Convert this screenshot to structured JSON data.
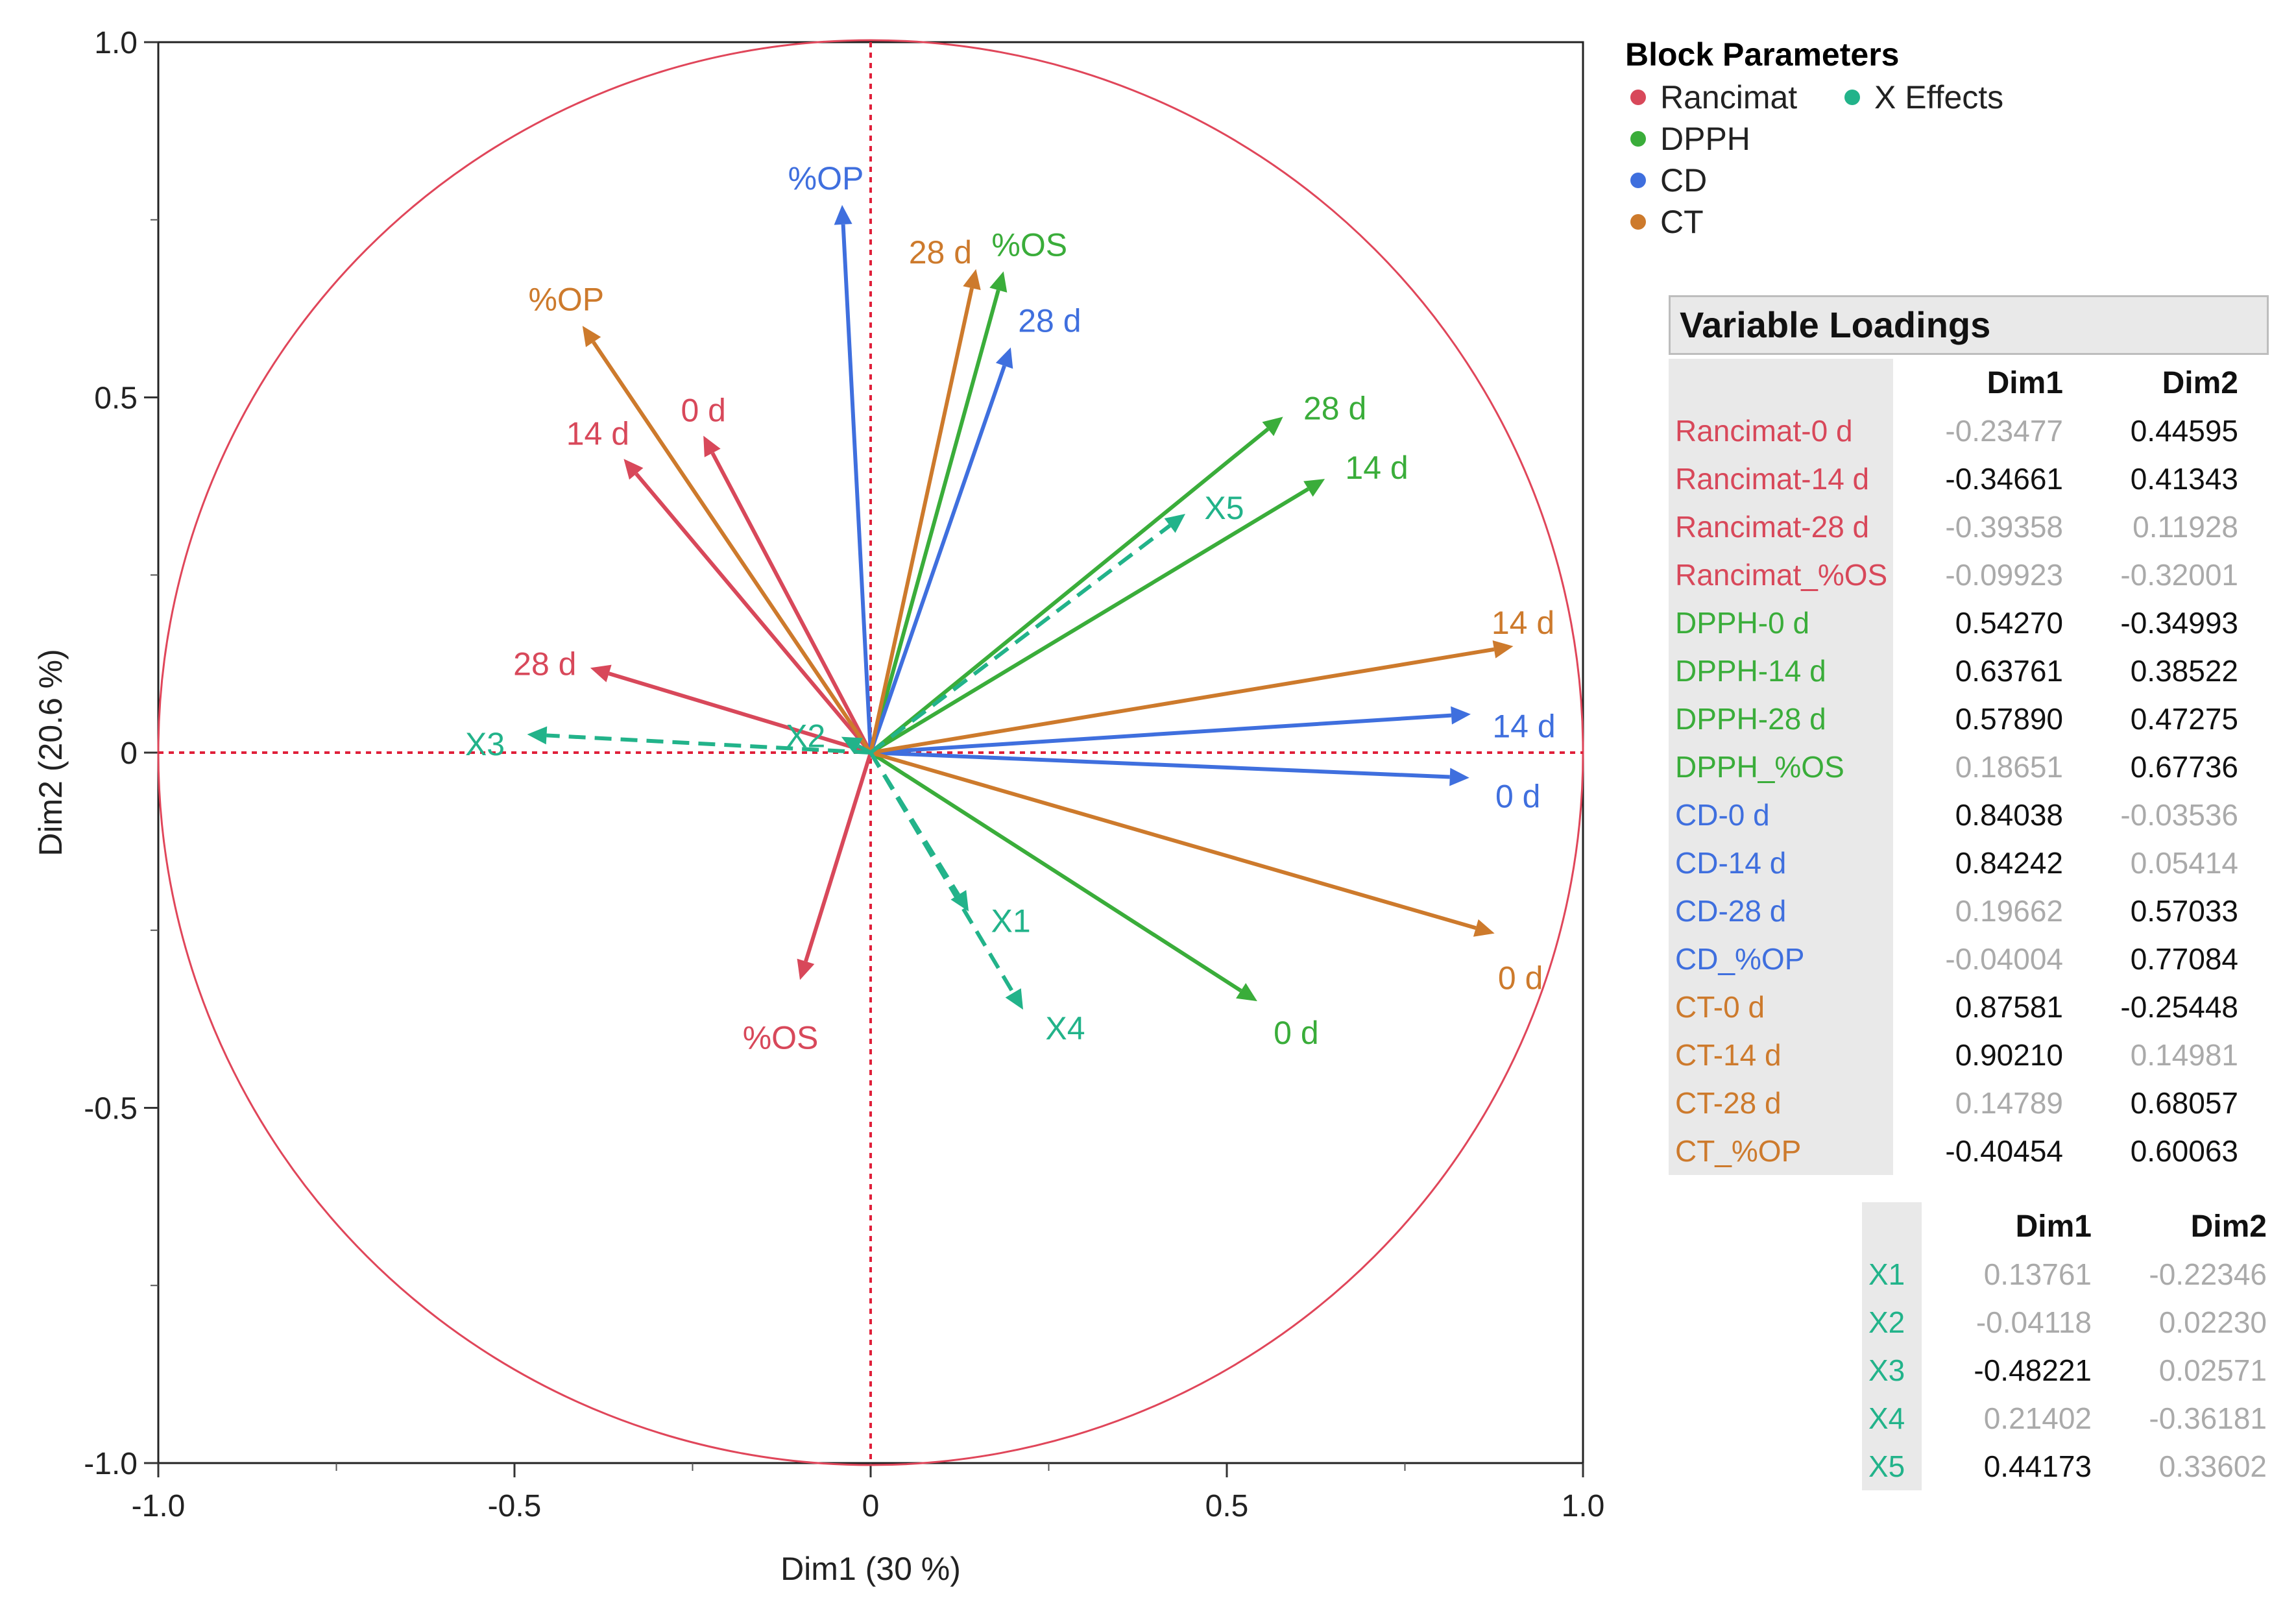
{
  "chart_data": {
    "type": "scatter",
    "subtype": "loading-plot-vectors",
    "xlabel": "Dim1  (30 %)",
    "ylabel": "Dim2  (20.6 %)",
    "xlim": [
      -1.0,
      1.0
    ],
    "ylim": [
      -1.0,
      1.0
    ],
    "xticks": [
      "-1.0",
      "-0.5",
      "0",
      "0.5",
      "1.0"
    ],
    "yticks": [
      "1.0",
      "0.5",
      "0",
      "-0.5",
      "-1.0"
    ],
    "unit_circle": true,
    "colors": {
      "Rancimat": "#d8485a",
      "DPPH": "#3aad3a",
      "CD": "#3f6fde",
      "CT": "#cd7a2c",
      "X Effects": "#22b38a"
    },
    "legend": {
      "title": "Block Parameters",
      "items": [
        "Rancimat",
        "X Effects",
        "DPPH",
        "CD",
        "CT"
      ]
    },
    "series": [
      {
        "name": "Rancimat",
        "points": [
          {
            "label": "0 d",
            "x": -0.23477,
            "y": 0.44595
          },
          {
            "label": "14 d",
            "x": -0.34661,
            "y": 0.41343
          },
          {
            "label": "28 d",
            "x": -0.39358,
            "y": 0.11928
          },
          {
            "label": "%OS",
            "x": -0.09923,
            "y": -0.32001
          }
        ]
      },
      {
        "name": "DPPH",
        "points": [
          {
            "label": "0 d",
            "x": 0.5427,
            "y": -0.34993
          },
          {
            "label": "14 d",
            "x": 0.63761,
            "y": 0.38522
          },
          {
            "label": "28 d",
            "x": 0.5789,
            "y": 0.47275
          },
          {
            "label": "%OS",
            "x": 0.18651,
            "y": 0.67736
          }
        ]
      },
      {
        "name": "CD",
        "points": [
          {
            "label": "0 d",
            "x": 0.84038,
            "y": -0.03536
          },
          {
            "label": "14 d",
            "x": 0.84242,
            "y": 0.05414
          },
          {
            "label": "28 d",
            "x": 0.19662,
            "y": 0.57033
          },
          {
            "label": "%OP",
            "x": -0.04004,
            "y": 0.77084
          }
        ]
      },
      {
        "name": "CT",
        "points": [
          {
            "label": "0 d",
            "x": 0.87581,
            "y": -0.25448
          },
          {
            "label": "14 d",
            "x": 0.9021,
            "y": 0.14981
          },
          {
            "label": "28 d",
            "x": 0.14789,
            "y": 0.68057
          },
          {
            "label": "%OP",
            "x": -0.40454,
            "y": 0.60063
          }
        ]
      },
      {
        "name": "X Effects",
        "dashed": true,
        "points": [
          {
            "label": "X1",
            "x": 0.13761,
            "y": -0.22346
          },
          {
            "label": "X2",
            "x": -0.04118,
            "y": 0.0223
          },
          {
            "label": "X3",
            "x": -0.48221,
            "y": 0.02571
          },
          {
            "label": "X4",
            "x": 0.21402,
            "y": -0.36181
          },
          {
            "label": "X5",
            "x": 0.44173,
            "y": 0.33602
          }
        ]
      }
    ]
  },
  "loadings_table": {
    "title": "Variable Loadings",
    "headers": [
      "Dim1",
      "Dim2"
    ],
    "rows": [
      {
        "name": "Rancimat-0 d",
        "group": "Rancimat",
        "dim1": "-0.23477",
        "dim2": "0.44595",
        "b1": false,
        "b2": true
      },
      {
        "name": "Rancimat-14 d",
        "group": "Rancimat",
        "dim1": "-0.34661",
        "dim2": "0.41343",
        "b1": true,
        "b2": true
      },
      {
        "name": "Rancimat-28 d",
        "group": "Rancimat",
        "dim1": "-0.39358",
        "dim2": "0.11928",
        "b1": false,
        "b2": false
      },
      {
        "name": "Rancimat_%OS",
        "group": "Rancimat",
        "dim1": "-0.09923",
        "dim2": "-0.32001",
        "b1": false,
        "b2": false
      },
      {
        "name": "DPPH-0 d",
        "group": "DPPH",
        "dim1": "0.54270",
        "dim2": "-0.34993",
        "b1": true,
        "b2": true
      },
      {
        "name": "DPPH-14 d",
        "group": "DPPH",
        "dim1": "0.63761",
        "dim2": "0.38522",
        "b1": true,
        "b2": true
      },
      {
        "name": "DPPH-28 d",
        "group": "DPPH",
        "dim1": "0.57890",
        "dim2": "0.47275",
        "b1": true,
        "b2": true
      },
      {
        "name": "DPPH_%OS",
        "group": "DPPH",
        "dim1": "0.18651",
        "dim2": "0.67736",
        "b1": false,
        "b2": true
      },
      {
        "name": "CD-0 d",
        "group": "CD",
        "dim1": "0.84038",
        "dim2": "-0.03536",
        "b1": true,
        "b2": false
      },
      {
        "name": "CD-14 d",
        "group": "CD",
        "dim1": "0.84242",
        "dim2": "0.05414",
        "b1": true,
        "b2": false
      },
      {
        "name": "CD-28 d",
        "group": "CD",
        "dim1": "0.19662",
        "dim2": "0.57033",
        "b1": false,
        "b2": true
      },
      {
        "name": "CD_%OP",
        "group": "CD",
        "dim1": "-0.04004",
        "dim2": "0.77084",
        "b1": false,
        "b2": true
      },
      {
        "name": "CT-0 d",
        "group": "CT",
        "dim1": "0.87581",
        "dim2": "-0.25448",
        "b1": true,
        "b2": true
      },
      {
        "name": "CT-14 d",
        "group": "CT",
        "dim1": "0.90210",
        "dim2": "0.14981",
        "b1": true,
        "b2": false
      },
      {
        "name": "CT-28 d",
        "group": "CT",
        "dim1": "0.14789",
        "dim2": "0.68057",
        "b1": false,
        "b2": true
      },
      {
        "name": "CT_%OP",
        "group": "CT",
        "dim1": "-0.40454",
        "dim2": "0.60063",
        "b1": true,
        "b2": true
      }
    ]
  },
  "x_effects_table": {
    "headers": [
      "Dim1",
      "Dim2"
    ],
    "rows": [
      {
        "name": "X1",
        "dim1": "0.13761",
        "dim2": "-0.22346",
        "b1": false,
        "b2": false
      },
      {
        "name": "X2",
        "dim1": "-0.04118",
        "dim2": "0.02230",
        "b1": false,
        "b2": false
      },
      {
        "name": "X3",
        "dim1": "-0.48221",
        "dim2": "0.02571",
        "b1": true,
        "b2": false
      },
      {
        "name": "X4",
        "dim1": "0.21402",
        "dim2": "-0.36181",
        "b1": false,
        "b2": false
      },
      {
        "name": "X5",
        "dim1": "0.44173",
        "dim2": "0.33602",
        "b1": true,
        "b2": false
      }
    ]
  }
}
